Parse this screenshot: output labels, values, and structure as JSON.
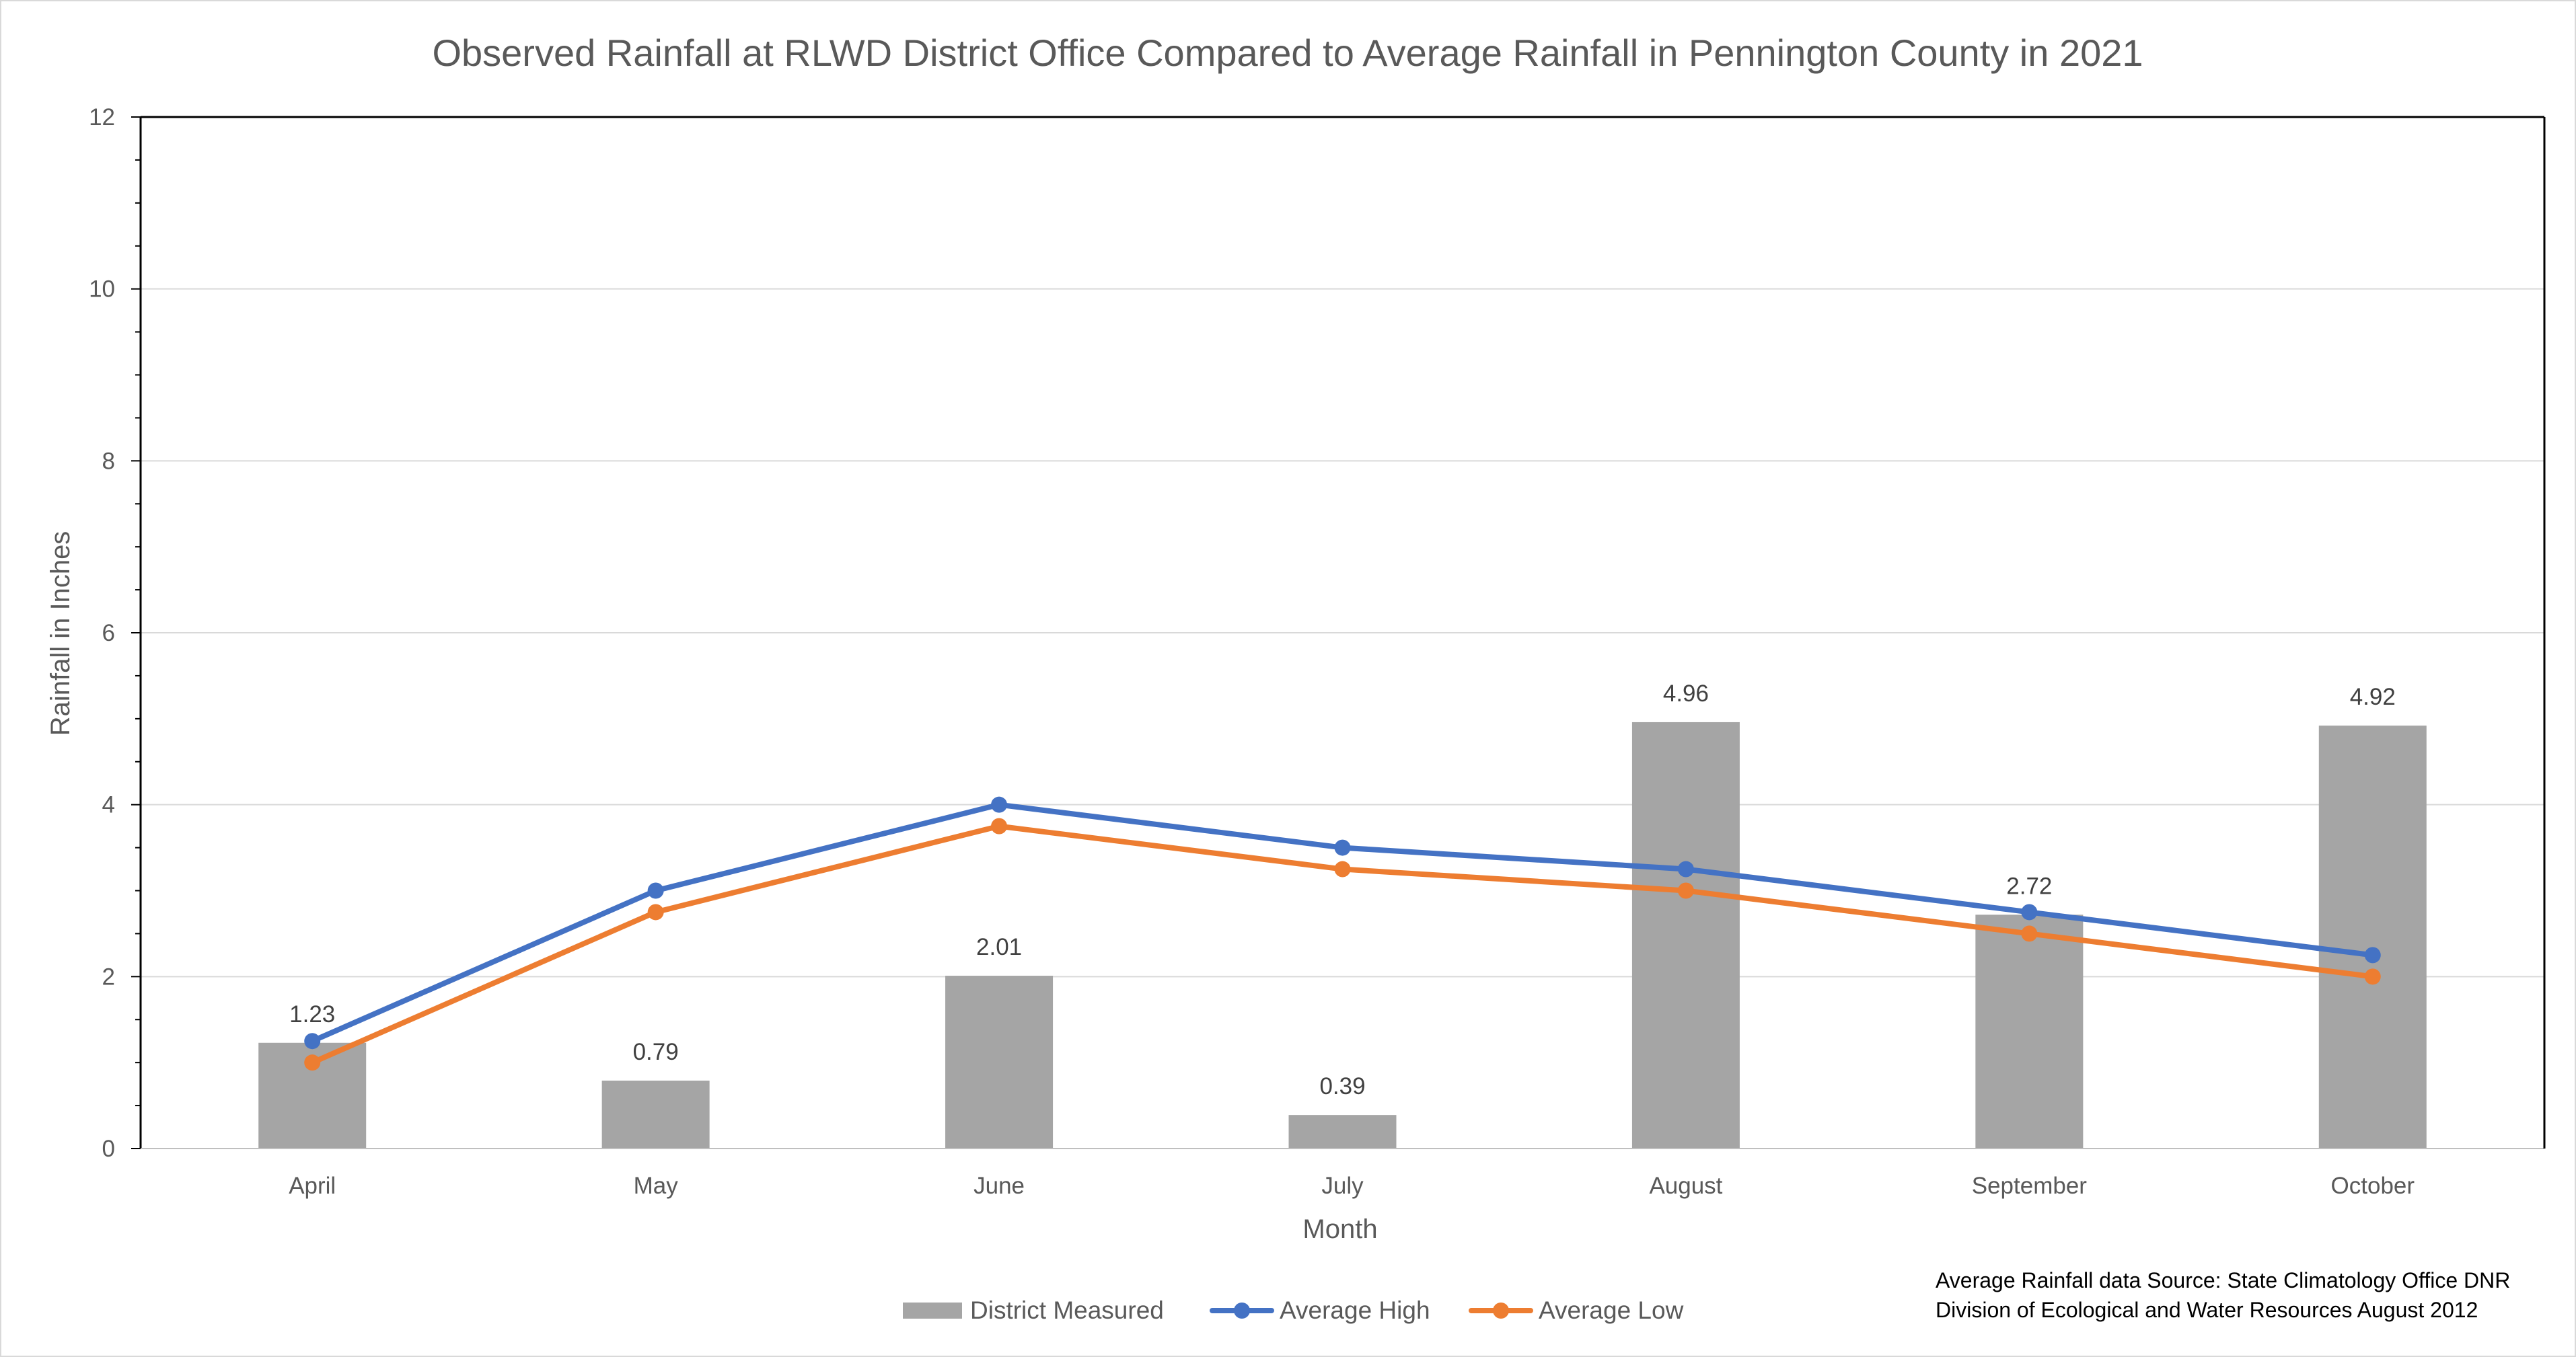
{
  "chart_data": {
    "type": "bar",
    "title": "Observed Rainfall at RLWD District Office Compared to Average Rainfall in Pennington County in 2021",
    "xlabel": "Month",
    "ylabel": "Rainfall in Inches",
    "ylim": [
      0,
      12
    ],
    "yticks": [
      "0",
      "2",
      "4",
      "6",
      "8",
      "10",
      "12"
    ],
    "grid": true,
    "legend_position": "bottom",
    "categories": [
      "April",
      "May",
      "June",
      "July",
      "August",
      "September",
      "October"
    ],
    "series": [
      {
        "name": "District Measured",
        "type": "bar",
        "color": "#a5a5a5",
        "values": [
          1.23,
          0.79,
          2.01,
          0.39,
          4.96,
          2.72,
          4.92
        ],
        "labels": [
          "1.23",
          "0.79",
          "2.01",
          "0.39",
          "4.96",
          "2.72",
          "4.92"
        ]
      },
      {
        "name": "Average High",
        "type": "line",
        "color": "#4472c4",
        "values": [
          1.25,
          3.0,
          4.0,
          3.5,
          3.25,
          2.75,
          2.25
        ]
      },
      {
        "name": "Average Low",
        "type": "line",
        "color": "#ed7d31",
        "values": [
          1.0,
          2.75,
          3.75,
          3.25,
          3.0,
          2.5,
          2.0
        ]
      }
    ],
    "source_note": [
      "Average Rainfall data Source: State Climatology Office DNR",
      "Division of Ecological and Water Resources August 2012"
    ]
  }
}
